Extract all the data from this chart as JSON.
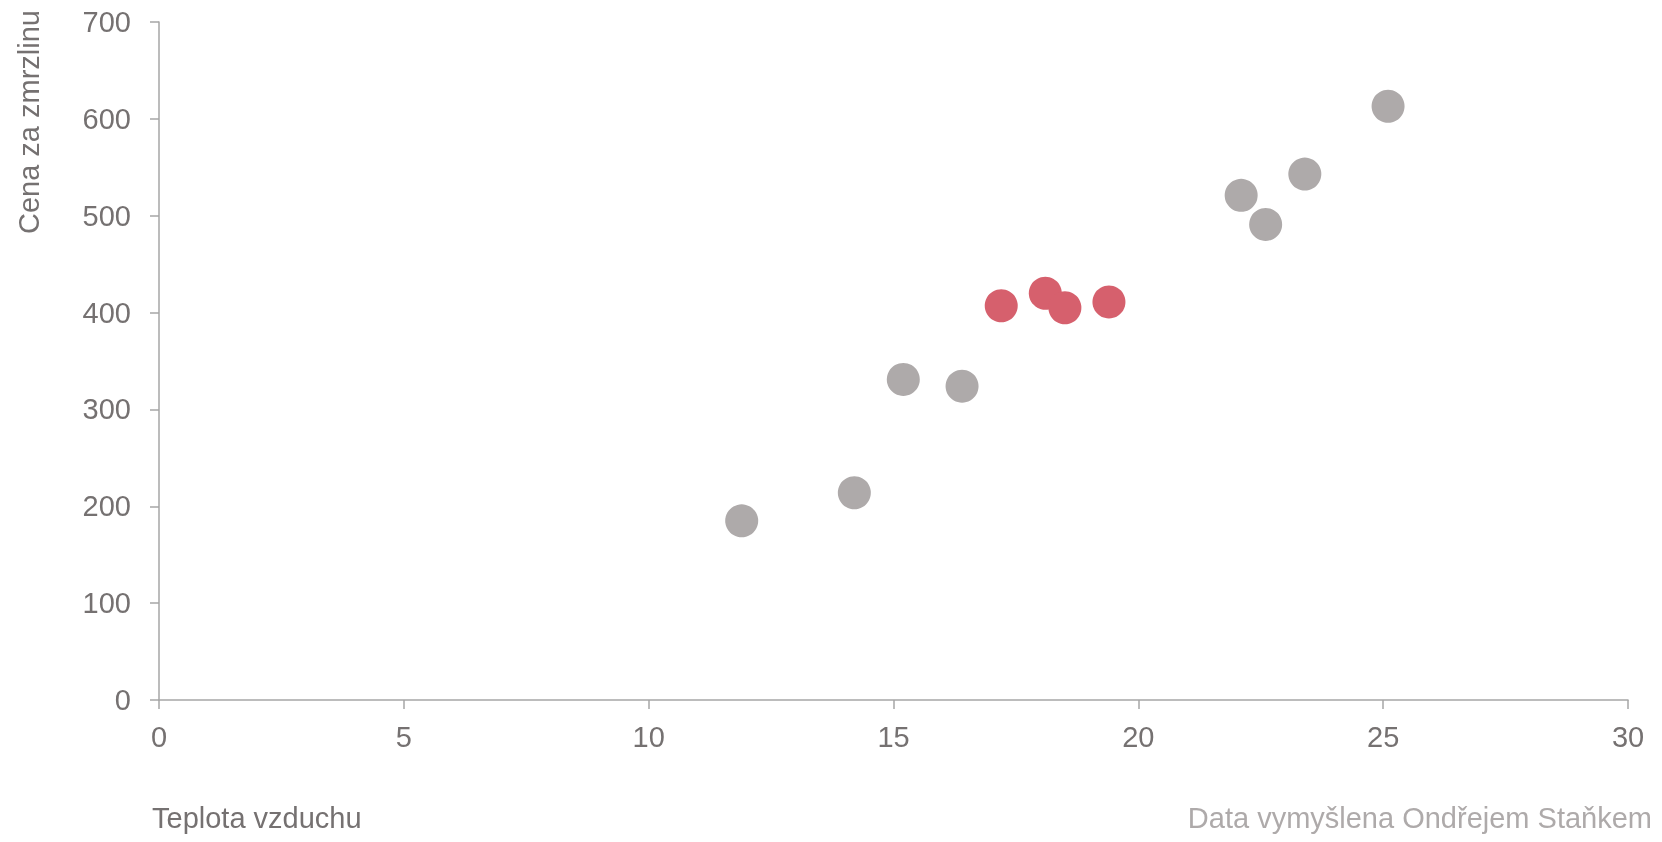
{
  "chart_data": {
    "type": "scatter",
    "xlabel": "Teplota vzduchu",
    "ylabel": "Cena za zmrzlinu",
    "annotations": [
      "Data vymyšlena Ondřejem Staňkem"
    ],
    "series": [
      {
        "color": "#aeaaaa",
        "x": [
          11.9,
          14.2,
          15.2,
          16.4,
          22.1,
          22.6,
          23.4,
          25.1
        ],
        "values": [
          185,
          214,
          331,
          324,
          521,
          491,
          543,
          613
        ]
      },
      {
        "color": "#d6606d",
        "x": [
          17.2,
          18.1,
          18.5,
          19.4
        ],
        "values": [
          407,
          420,
          405,
          411
        ]
      }
    ],
    "xlim": [
      0,
      30
    ],
    "xticks": [
      0,
      5,
      10,
      15,
      20,
      25,
      30
    ],
    "ylim": [
      0,
      700
    ],
    "yticks": [
      0,
      100,
      200,
      300,
      400,
      500,
      600,
      700
    ],
    "marker": "circle"
  }
}
